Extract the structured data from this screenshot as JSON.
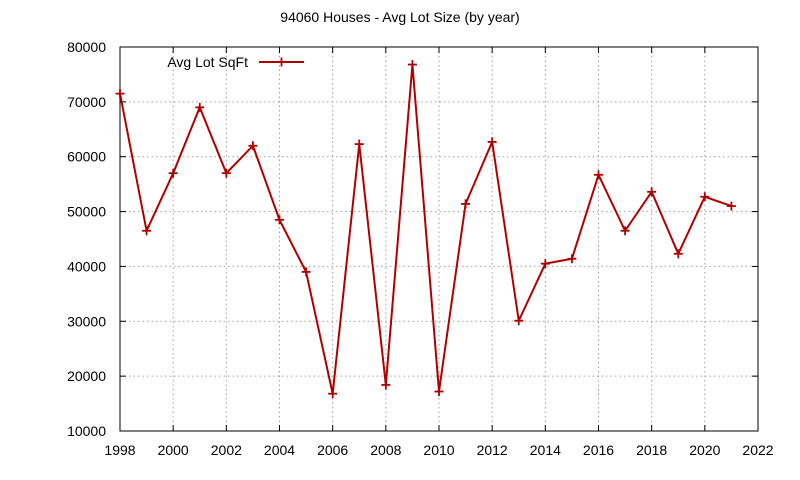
{
  "chart_data": {
    "type": "line",
    "title": "94060 Houses - Avg Lot Size (by year)",
    "xlabel": "",
    "ylabel": "",
    "xlim": [
      1998,
      2022
    ],
    "ylim": [
      10000,
      80000
    ],
    "x_ticks": [
      "1998",
      "2000",
      "2002",
      "2004",
      "2006",
      "2008",
      "2010",
      "2012",
      "2014",
      "2016",
      "2018",
      "2020",
      "2022"
    ],
    "y_ticks": [
      "10000",
      "20000",
      "30000",
      "40000",
      "50000",
      "60000",
      "70000",
      "80000"
    ],
    "grid": true,
    "legend_position": "top-left",
    "marker": "plus",
    "series": [
      {
        "name": "Avg Lot SqFt",
        "color": "#b00000",
        "x": [
          1998,
          1999,
          2000,
          2001,
          2002,
          2003,
          2004,
          2005,
          2006,
          2007,
          2008,
          2009,
          2010,
          2011,
          2012,
          2013,
          2014,
          2015,
          2016,
          2017,
          2018,
          2019,
          2020,
          2021
        ],
        "y": [
          71500,
          46500,
          57000,
          69000,
          57000,
          62000,
          48500,
          39000,
          16800,
          62300,
          18400,
          76800,
          17200,
          51400,
          62700,
          30100,
          40500,
          41400,
          56700,
          46500,
          53600,
          42300,
          52700,
          51000
        ]
      }
    ]
  }
}
